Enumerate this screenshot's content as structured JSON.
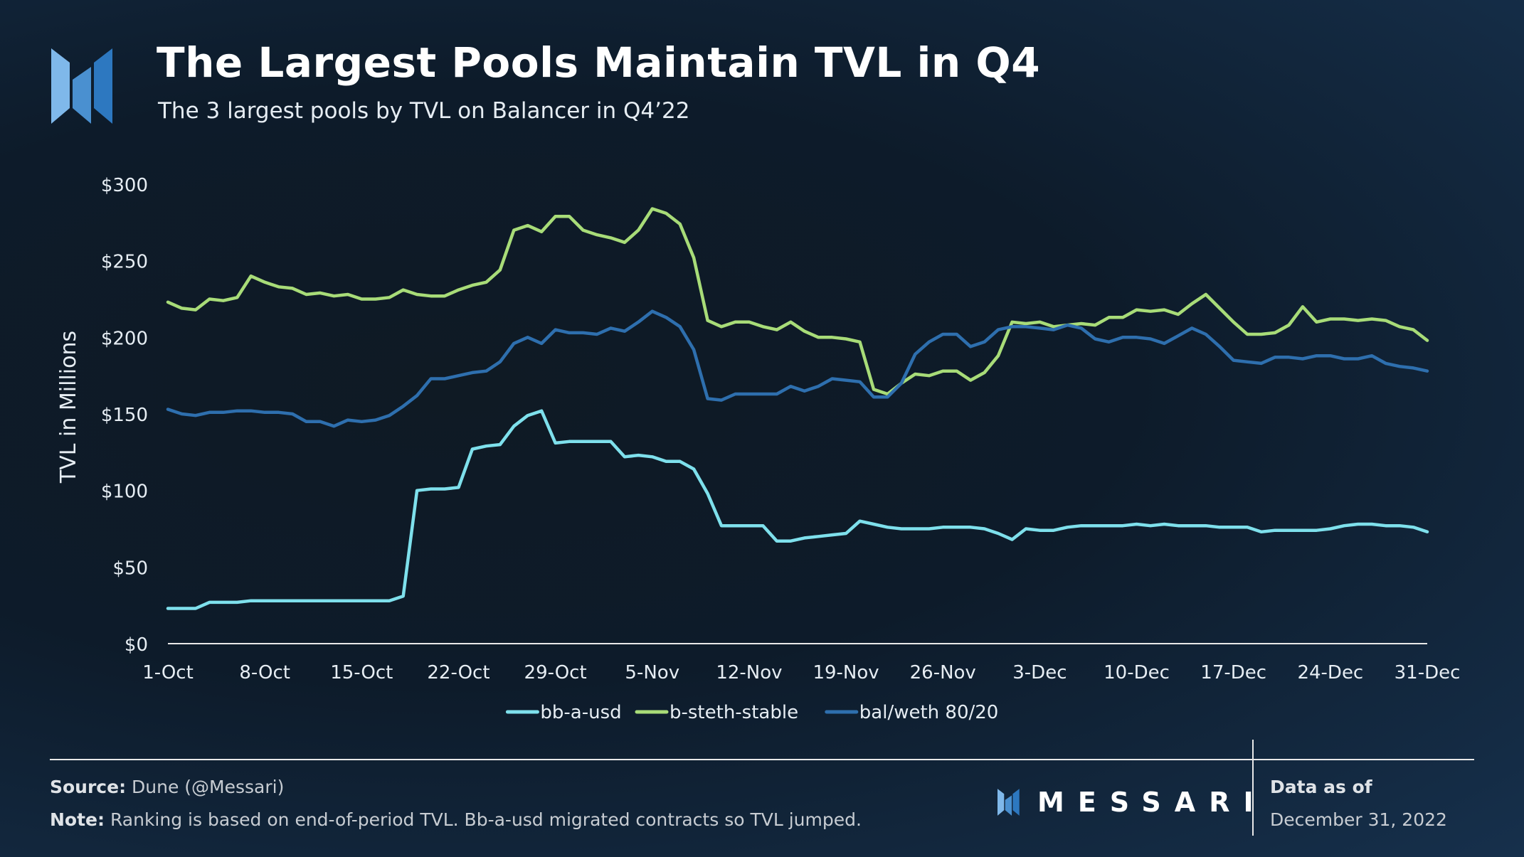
{
  "header": {
    "title": "The Largest Pools Maintain TVL in Q4",
    "subtitle": "The 3 largest pools by TVL on Balancer in Q4’22"
  },
  "footer": {
    "source_label": "Source:",
    "source_text": " Dune (@Messari)",
    "note_label": "Note:",
    "note_text": " Ranking is based on end-of-period TVL. Bb-a-usd migrated contracts so TVL jumped.",
    "brand": "MESSARI",
    "data_as_of_label": "Data as of",
    "data_as_of_date": "December 31, 2022"
  },
  "colors": {
    "accent_light": "#7fb8ea",
    "accent_mid": "#4a90d0",
    "accent_dark": "#1d63a8"
  },
  "chart_data": {
    "type": "line",
    "title": "The Largest Pools Maintain TVL in Q4",
    "xlabel": "",
    "ylabel": "TVL in Millions",
    "ylim": [
      0,
      300
    ],
    "yticks": [
      0,
      50,
      100,
      150,
      200,
      250,
      300
    ],
    "ytick_labels": [
      "$0",
      "$50",
      "$100",
      "$150",
      "$200",
      "$250",
      "$300"
    ],
    "xlim": [
      0,
      91
    ],
    "xticks": [
      0,
      7,
      14,
      21,
      28,
      35,
      42,
      49,
      56,
      63,
      70,
      77,
      84,
      91
    ],
    "xtick_labels": [
      "1-Oct",
      "8-Oct",
      "15-Oct",
      "22-Oct",
      "29-Oct",
      "5-Nov",
      "12-Nov",
      "19-Nov",
      "26-Nov",
      "3-Dec",
      "10-Dec",
      "17-Dec",
      "24-Dec",
      "31-Dec"
    ],
    "grid": false,
    "legend": "bottom-center",
    "series": [
      {
        "name": "bb-a-usd",
        "color": "#7ee0ec",
        "values": [
          23,
          23,
          23,
          27,
          27,
          27,
          28,
          28,
          28,
          28,
          28,
          28,
          28,
          28,
          28,
          28,
          28,
          31,
          100,
          101,
          101,
          102,
          127,
          129,
          130,
          142,
          149,
          152,
          131,
          132,
          132,
          132,
          132,
          122,
          123,
          122,
          119,
          119,
          114,
          98,
          77,
          77,
          77,
          77,
          67,
          67,
          69,
          70,
          71,
          72,
          80,
          78,
          76,
          75,
          75,
          75,
          76,
          76,
          76,
          75,
          72,
          68,
          75,
          74,
          74,
          76,
          77,
          77,
          77,
          77,
          78,
          77,
          78,
          77,
          77,
          77,
          76,
          76,
          76,
          73,
          74,
          74,
          74,
          74,
          75,
          77,
          78,
          78,
          77,
          77,
          76,
          73
        ]
      },
      {
        "name": "b-steth-stable",
        "color": "#a8dc78",
        "values": [
          223,
          219,
          218,
          225,
          224,
          226,
          240,
          236,
          233,
          232,
          228,
          229,
          227,
          228,
          225,
          225,
          226,
          231,
          228,
          227,
          227,
          231,
          234,
          236,
          244,
          270,
          273,
          269,
          279,
          279,
          270,
          267,
          265,
          262,
          270,
          284,
          281,
          274,
          252,
          211,
          207,
          210,
          210,
          207,
          205,
          210,
          204,
          200,
          200,
          199,
          197,
          166,
          163,
          170,
          176,
          175,
          178,
          178,
          172,
          177,
          188,
          210,
          209,
          210,
          207,
          208,
          209,
          208,
          213,
          213,
          218,
          217,
          218,
          215,
          222,
          228,
          219,
          210,
          202,
          202,
          203,
          208,
          220,
          210,
          212,
          212,
          211,
          212,
          211,
          207,
          205,
          198
        ]
      },
      {
        "name": "bal/weth 80/20",
        "color": "#2e6fae",
        "values": [
          153,
          150,
          149,
          151,
          151,
          152,
          152,
          151,
          151,
          150,
          145,
          145,
          142,
          146,
          145,
          146,
          149,
          155,
          162,
          173,
          173,
          175,
          177,
          178,
          184,
          196,
          200,
          196,
          205,
          203,
          203,
          202,
          206,
          204,
          210,
          217,
          213,
          207,
          192,
          160,
          159,
          163,
          163,
          163,
          163,
          168,
          165,
          168,
          173,
          172,
          171,
          161,
          161,
          170,
          189,
          197,
          202,
          202,
          194,
          197,
          205,
          207,
          207,
          206,
          205,
          208,
          206,
          199,
          197,
          200,
          200,
          199,
          196,
          201,
          206,
          202,
          194,
          185,
          184,
          183,
          187,
          187,
          186,
          188,
          188,
          186,
          186,
          188,
          183,
          181,
          180,
          178
        ]
      }
    ]
  }
}
